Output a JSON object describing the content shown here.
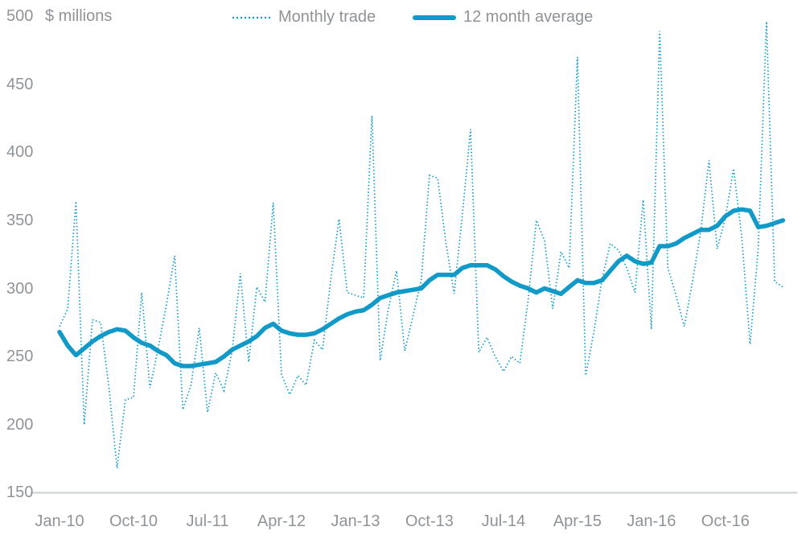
{
  "chart_data": {
    "type": "line",
    "title": "",
    "xlabel": "",
    "ylabel": "$ millions",
    "x_start": "Jan-2010",
    "x_end": "May-2017",
    "frequency": "monthly",
    "ylim": [
      150,
      500
    ],
    "grid": false,
    "legend_position": "top",
    "y_ticks": [
      500,
      450,
      400,
      350,
      300,
      250,
      200,
      150
    ],
    "x_ticks": [
      {
        "label": "Jan-10",
        "month_index": 0
      },
      {
        "label": "Oct-10",
        "month_index": 9
      },
      {
        "label": "Jul-11",
        "month_index": 18
      },
      {
        "label": "Apr-12",
        "month_index": 27
      },
      {
        "label": "Jan-13",
        "month_index": 36
      },
      {
        "label": "Oct-13",
        "month_index": 45
      },
      {
        "label": "Jul-14",
        "month_index": 54
      },
      {
        "label": "Apr-15",
        "month_index": 63
      },
      {
        "label": "Jan-16",
        "month_index": 72
      },
      {
        "label": "Oct-16",
        "month_index": 81
      }
    ],
    "series": [
      {
        "name": "Monthly trade",
        "style": "dotted",
        "values": [
          272,
          285,
          364,
          200,
          277,
          275,
          228,
          168,
          218,
          220,
          297,
          227,
          256,
          288,
          324,
          211,
          229,
          271,
          209,
          238,
          225,
          254,
          311,
          246,
          301,
          290,
          363,
          237,
          222,
          236,
          229,
          262,
          255,
          307,
          351,
          297,
          295,
          293,
          427,
          247,
          285,
          313,
          254,
          280,
          306,
          383,
          381,
          334,
          296,
          354,
          417,
          253,
          264,
          250,
          239,
          250,
          245,
          291,
          350,
          335,
          285,
          327,
          315,
          470,
          236,
          268,
          307,
          333,
          328,
          315,
          297,
          365,
          270,
          489,
          315,
          295,
          272,
          305,
          342,
          394,
          329,
          352,
          388,
          337,
          259,
          330,
          496,
          305,
          301
        ]
      },
      {
        "name": "12 month average",
        "style": "solid",
        "values": [
          268,
          258,
          251,
          256,
          261,
          265,
          268,
          270,
          269,
          264,
          260,
          258,
          254,
          251,
          245,
          243,
          243,
          244,
          245,
          246,
          250,
          255,
          258,
          261,
          265,
          271,
          274,
          269,
          267,
          266,
          266,
          267,
          270,
          274,
          278,
          281,
          283,
          284,
          288,
          293,
          295,
          297,
          298,
          299,
          300,
          306,
          310,
          310,
          310,
          315,
          317,
          317,
          317,
          314,
          309,
          305,
          302,
          300,
          297,
          300,
          298,
          296,
          301,
          306,
          304,
          304,
          306,
          313,
          320,
          324,
          320,
          318,
          319,
          331,
          331,
          333,
          337,
          340,
          343,
          343,
          346,
          353,
          357,
          358,
          357,
          345,
          346,
          348,
          350
        ]
      }
    ],
    "colors": {
      "line": "#1199c8",
      "axis_line": "#cbcfd2",
      "text": "#909499"
    }
  }
}
